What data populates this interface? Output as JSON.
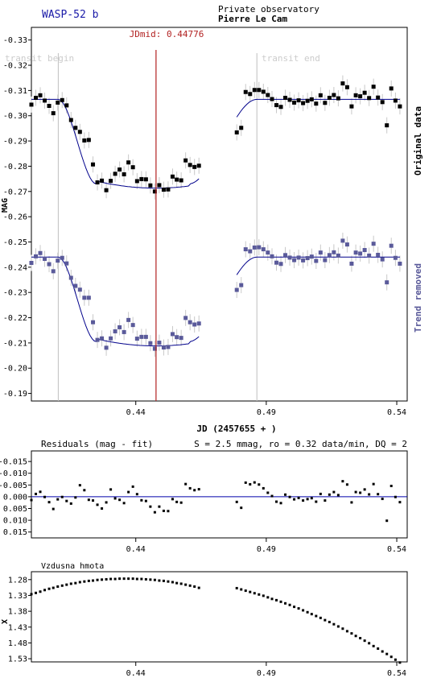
{
  "header": {
    "target": "WASP-52 b",
    "observatory": "Private observatory",
    "observer": "Pierre Le Cam"
  },
  "colors": {
    "target": "#1a1aa8",
    "jdmid": "#b22222",
    "original": "#000000",
    "trend": "#5a5a9a",
    "fit_original": "#00008b",
    "transit_marker": "#bfbfbf",
    "error_bar": "#c8c8c8",
    "residual_zero": "#0000aa"
  },
  "chart_data": [
    {
      "type": "scatter",
      "panel": "light-curve",
      "xlabel": "JD (2457655 + )",
      "ylabel": "MAG",
      "xlim": [
        0.4,
        0.544
      ],
      "ylim": [
        -0.335,
        -0.187
      ],
      "y_inverted": true,
      "xticks": [
        0.44,
        0.49,
        0.54
      ],
      "xtick_labels": [
        "0.44",
        "0.49",
        "0.54"
      ],
      "yticks": [
        -0.33,
        -0.32,
        -0.31,
        -0.3,
        -0.29,
        -0.28,
        -0.27,
        -0.26,
        -0.25,
        -0.24,
        -0.23,
        -0.22,
        -0.21,
        -0.2,
        -0.19
      ],
      "ytick_labels": [
        "-0.33",
        "-0.32",
        "-0.31",
        "-0.30",
        "-0.29",
        "-0.28",
        "-0.27",
        "-0.26",
        "-0.25",
        "-0.24",
        "-0.23",
        "-0.22",
        "-0.21",
        "-0.20",
        "-0.19"
      ],
      "jdmid": {
        "x": 0.44776,
        "label": "JDmid: 0.44776"
      },
      "transit_begin": {
        "x": 0.4103,
        "label": "transit begin"
      },
      "transit_end": {
        "x": 0.4864,
        "label": "transit end"
      },
      "grid": false,
      "series": [
        {
          "name": "Original data",
          "marker": "square",
          "x": [
            0.4,
            0.4017,
            0.4034,
            0.4051,
            0.4068,
            0.4084,
            0.4101,
            0.4118,
            0.4135,
            0.4152,
            0.4169,
            0.4186,
            0.4203,
            0.422,
            0.4236,
            0.4253,
            0.427,
            0.4287,
            0.4304,
            0.4321,
            0.4338,
            0.4355,
            0.4372,
            0.4389,
            0.4405,
            0.4422,
            0.4439,
            0.4456,
            0.4473,
            0.449,
            0.4507,
            0.4524,
            0.4541,
            0.4557,
            0.4574,
            0.4591,
            0.4608,
            0.4625,
            0.4642,
            0.4787,
            0.4804,
            0.4821,
            0.4838,
            0.4855,
            0.4872,
            0.4889,
            0.4906,
            0.4922,
            0.4939,
            0.4956,
            0.4973,
            0.499,
            0.5007,
            0.5024,
            0.5041,
            0.5058,
            0.5074,
            0.5091,
            0.5108,
            0.5125,
            0.5142,
            0.5159,
            0.5176,
            0.5193,
            0.521,
            0.5227,
            0.5243,
            0.526,
            0.5277,
            0.5294,
            0.5311,
            0.5328,
            0.5345,
            0.5362,
            0.5379,
            0.5395,
            0.5412
          ],
          "y": [
            -0.3044,
            -0.3071,
            -0.3081,
            -0.306,
            -0.3039,
            -0.301,
            -0.3052,
            -0.3062,
            -0.3041,
            -0.2983,
            -0.2952,
            -0.2936,
            -0.2902,
            -0.2904,
            -0.2807,
            -0.2736,
            -0.2743,
            -0.2705,
            -0.2742,
            -0.277,
            -0.2787,
            -0.2768,
            -0.2815,
            -0.2796,
            -0.2741,
            -0.2749,
            -0.2748,
            -0.2724,
            -0.27,
            -0.2725,
            -0.2707,
            -0.2708,
            -0.2759,
            -0.2747,
            -0.2744,
            -0.2823,
            -0.2805,
            -0.2797,
            -0.2802,
            -0.2934,
            -0.2952,
            -0.3094,
            -0.3086,
            -0.3102,
            -0.3102,
            -0.3095,
            -0.3082,
            -0.3066,
            -0.3042,
            -0.3035,
            -0.3071,
            -0.3063,
            -0.3052,
            -0.3061,
            -0.305,
            -0.3059,
            -0.3065,
            -0.3048,
            -0.3081,
            -0.3051,
            -0.3071,
            -0.3082,
            -0.3069,
            -0.3128,
            -0.3113,
            -0.3037,
            -0.3081,
            -0.3077,
            -0.3091,
            -0.307,
            -0.3115,
            -0.3072,
            -0.3054,
            -0.2962,
            -0.3108,
            -0.306,
            -0.3037
          ]
        },
        {
          "name": "Trend removed",
          "marker": "square",
          "x": [
            0.4,
            0.4017,
            0.4034,
            0.4051,
            0.4068,
            0.4084,
            0.4101,
            0.4118,
            0.4135,
            0.4152,
            0.4169,
            0.4186,
            0.4203,
            0.422,
            0.4236,
            0.4253,
            0.427,
            0.4287,
            0.4304,
            0.4321,
            0.4338,
            0.4355,
            0.4372,
            0.4389,
            0.4405,
            0.4422,
            0.4439,
            0.4456,
            0.4473,
            0.449,
            0.4507,
            0.4524,
            0.4541,
            0.4557,
            0.4574,
            0.4591,
            0.4608,
            0.4625,
            0.4642,
            0.4787,
            0.4804,
            0.4821,
            0.4838,
            0.4855,
            0.4872,
            0.4889,
            0.4906,
            0.4922,
            0.4939,
            0.4956,
            0.4973,
            0.499,
            0.5007,
            0.5024,
            0.5041,
            0.5058,
            0.5074,
            0.5091,
            0.5108,
            0.5125,
            0.5142,
            0.5159,
            0.5176,
            0.5193,
            0.521,
            0.5227,
            0.5243,
            0.526,
            0.5277,
            0.5294,
            0.5311,
            0.5328,
            0.5345,
            0.5362,
            0.5379,
            0.5395,
            0.5412
          ],
          "y": [
            -0.2417,
            -0.2443,
            -0.2456,
            -0.2433,
            -0.2412,
            -0.2384,
            -0.2426,
            -0.2437,
            -0.2415,
            -0.2358,
            -0.2326,
            -0.2311,
            -0.2279,
            -0.2279,
            -0.2182,
            -0.2112,
            -0.2118,
            -0.2081,
            -0.2118,
            -0.2146,
            -0.2162,
            -0.2143,
            -0.2191,
            -0.2171,
            -0.2117,
            -0.2124,
            -0.2124,
            -0.2099,
            -0.2077,
            -0.2101,
            -0.2082,
            -0.2084,
            -0.2135,
            -0.2123,
            -0.212,
            -0.2199,
            -0.2182,
            -0.2173,
            -0.2177,
            -0.231,
            -0.2329,
            -0.2471,
            -0.2463,
            -0.2478,
            -0.2479,
            -0.2471,
            -0.2458,
            -0.2443,
            -0.2418,
            -0.2413,
            -0.2448,
            -0.2438,
            -0.2428,
            -0.2438,
            -0.2427,
            -0.2436,
            -0.2442,
            -0.2425,
            -0.2458,
            -0.2428,
            -0.2448,
            -0.2459,
            -0.2446,
            -0.2505,
            -0.249,
            -0.2414,
            -0.2458,
            -0.2454,
            -0.2468,
            -0.2446,
            -0.2493,
            -0.2449,
            -0.2431,
            -0.234,
            -0.2485,
            -0.2437,
            -0.2414
          ]
        }
      ]
    },
    {
      "type": "scatter",
      "panel": "residuals",
      "title": "Residuals (mag - fit)",
      "stats": "S = 2.5 mmag, ro = 0.32 data/min, DQ = 2",
      "xlim": [
        0.4,
        0.544
      ],
      "ylim": [
        -0.0195,
        0.0175
      ],
      "y_inverted": true,
      "xticks": [
        0.44,
        0.49,
        0.54
      ],
      "xtick_labels": [
        "0.44",
        "0.49",
        "0.54"
      ],
      "yticks": [
        -0.015,
        -0.01,
        -0.005,
        0.0,
        0.005,
        0.01,
        0.015
      ],
      "ytick_labels": [
        "-0.015",
        "-0.010",
        "-0.005",
        "0.000",
        "0.005",
        "0.010",
        "0.015"
      ],
      "x": [
        0.4,
        0.4017,
        0.4034,
        0.4051,
        0.4068,
        0.4084,
        0.4101,
        0.4118,
        0.4135,
        0.4152,
        0.4169,
        0.4186,
        0.4203,
        0.422,
        0.4236,
        0.4253,
        0.427,
        0.4287,
        0.4304,
        0.4321,
        0.4338,
        0.4355,
        0.4372,
        0.4389,
        0.4405,
        0.4422,
        0.4439,
        0.4456,
        0.4473,
        0.449,
        0.4507,
        0.4524,
        0.4541,
        0.4557,
        0.4574,
        0.4591,
        0.4608,
        0.4625,
        0.4642,
        0.4787,
        0.4804,
        0.4821,
        0.4838,
        0.4855,
        0.4872,
        0.4889,
        0.4906,
        0.4922,
        0.4939,
        0.4956,
        0.4973,
        0.499,
        0.5007,
        0.5024,
        0.5041,
        0.5058,
        0.5074,
        0.5091,
        0.5108,
        0.5125,
        0.5142,
        0.5159,
        0.5176,
        0.5193,
        0.521,
        0.5227,
        0.5243,
        0.526,
        0.5277,
        0.5294,
        0.5311,
        0.5328,
        0.5345,
        0.5362,
        0.5379,
        0.5395,
        0.5412
      ],
      "y": [
        0.0014,
        -0.0012,
        -0.0021,
        0.0001,
        0.0023,
        0.0052,
        0.0011,
        0.0001,
        0.0018,
        0.0029,
        0.0003,
        -0.0049,
        -0.0028,
        0.0013,
        0.0016,
        0.0034,
        0.005,
        0.0024,
        -0.0031,
        0.0007,
        0.0013,
        0.0027,
        -0.002,
        -0.0043,
        -0.0011,
        0.0015,
        0.0018,
        0.0042,
        0.0066,
        0.0042,
        0.006,
        0.0061,
        0.001,
        0.0022,
        0.0025,
        -0.0054,
        -0.0036,
        -0.0028,
        -0.0032,
        0.0022,
        0.0047,
        -0.006,
        -0.0053,
        -0.0061,
        -0.0052,
        -0.0036,
        -0.0017,
        -0.0003,
        0.0021,
        0.0027,
        -0.0009,
        0.0001,
        0.0011,
        0.0005,
        0.0016,
        0.001,
        0.0006,
        0.0021,
        -0.0012,
        0.0016,
        -0.0009,
        -0.002,
        -0.0007,
        -0.0066,
        -0.0052,
        0.0024,
        -0.002,
        -0.0017,
        -0.0031,
        -0.001,
        -0.0054,
        -0.0011,
        0.0009,
        0.0102,
        -0.0046,
        0.0001,
        0.0023
      ]
    },
    {
      "type": "scatter",
      "panel": "airmass",
      "title": "Vzdusna hmota",
      "ylabel": "X",
      "xlim": [
        0.4,
        0.544
      ],
      "ylim": [
        1.255,
        1.54
      ],
      "y_inverted": true,
      "xticks": [
        0.44,
        0.49,
        0.54
      ],
      "xtick_labels": [
        "0.44",
        "0.49",
        "0.54"
      ],
      "yticks": [
        1.28,
        1.33,
        1.38,
        1.43,
        1.48,
        1.53
      ],
      "ytick_labels": [
        "1.28",
        "1.33",
        "1.38",
        "1.43",
        "1.48",
        "1.53"
      ],
      "x": [
        0.4,
        0.4017,
        0.4034,
        0.4051,
        0.4068,
        0.4084,
        0.4101,
        0.4118,
        0.4135,
        0.4152,
        0.4169,
        0.4186,
        0.4203,
        0.422,
        0.4236,
        0.4253,
        0.427,
        0.4287,
        0.4304,
        0.4321,
        0.4338,
        0.4355,
        0.4372,
        0.4389,
        0.4405,
        0.4422,
        0.4439,
        0.4456,
        0.4473,
        0.449,
        0.4507,
        0.4524,
        0.4541,
        0.4557,
        0.4574,
        0.4591,
        0.4608,
        0.4625,
        0.4642,
        0.4787,
        0.4804,
        0.4821,
        0.4838,
        0.4855,
        0.4872,
        0.4889,
        0.4906,
        0.4922,
        0.4939,
        0.4956,
        0.4973,
        0.499,
        0.5007,
        0.5024,
        0.5041,
        0.5058,
        0.5074,
        0.5091,
        0.5108,
        0.5125,
        0.5142,
        0.5159,
        0.5176,
        0.5193,
        0.521,
        0.5227,
        0.5243,
        0.526,
        0.5277,
        0.5294,
        0.5311,
        0.5328,
        0.5345,
        0.5362,
        0.5379,
        0.5395,
        0.5412
      ],
      "y": [
        1.326,
        1.322,
        1.318,
        1.313,
        1.309,
        1.306,
        1.302,
        1.299,
        1.296,
        1.293,
        1.291,
        1.288,
        1.286,
        1.284,
        1.283,
        1.281,
        1.28,
        1.279,
        1.278,
        1.278,
        1.277,
        1.277,
        1.277,
        1.277,
        1.278,
        1.278,
        1.279,
        1.28,
        1.281,
        1.283,
        1.284,
        1.286,
        1.288,
        1.291,
        1.293,
        1.296,
        1.299,
        1.302,
        1.306,
        1.307,
        1.311,
        1.315,
        1.319,
        1.323,
        1.327,
        1.331,
        1.336,
        1.341,
        1.345,
        1.35,
        1.355,
        1.36,
        1.366,
        1.371,
        1.377,
        1.383,
        1.389,
        1.395,
        1.401,
        1.408,
        1.414,
        1.421,
        1.428,
        1.435,
        1.443,
        1.45,
        1.458,
        1.465,
        1.473,
        1.481,
        1.49,
        1.498,
        1.507,
        1.515,
        1.524,
        1.533,
        1.542
      ]
    }
  ]
}
